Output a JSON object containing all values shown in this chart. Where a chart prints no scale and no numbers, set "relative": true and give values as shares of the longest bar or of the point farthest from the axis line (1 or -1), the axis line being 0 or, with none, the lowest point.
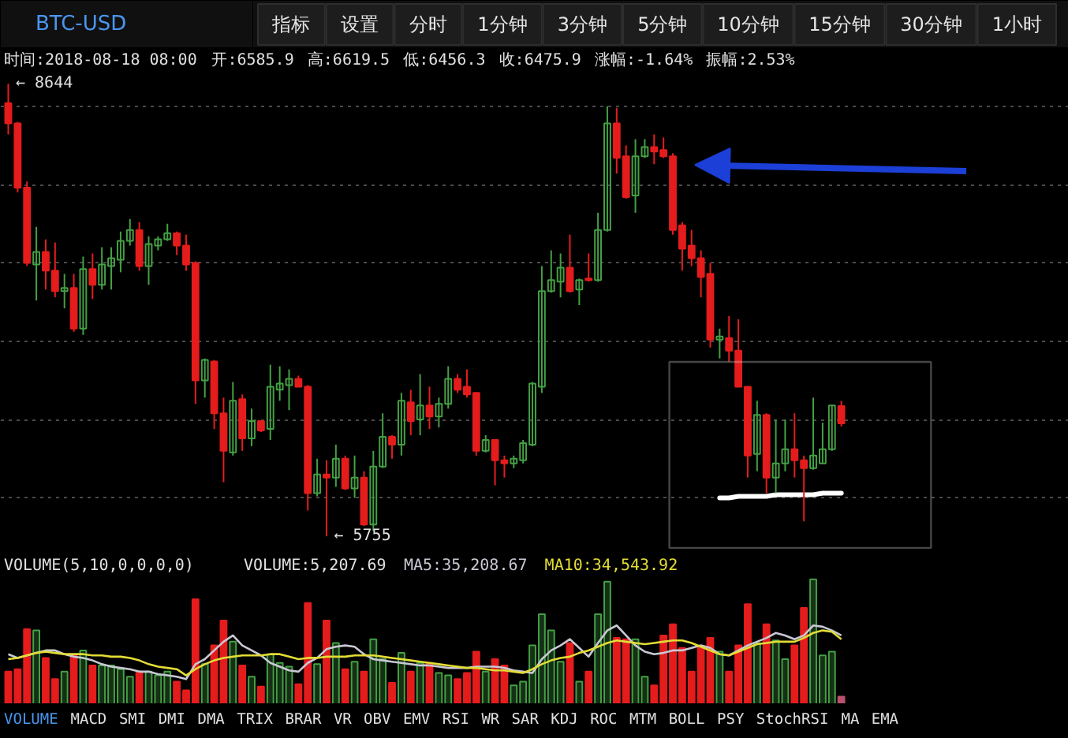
{
  "chart_data": [
    {
      "type": "other",
      "annotations": [
        "指标",
        "设置",
        "分时",
        "1分钟",
        "3分钟",
        "5分钟",
        "10分钟",
        "15分钟",
        "30分钟",
        "1小时"
      ]
    },
    {
      "type": "other",
      "annotations": [
        "时间:2018-08-18 08:00",
        "开:6585.9",
        "高:6619.5",
        "低:6456.3",
        "收:6475.9",
        "涨幅:-1.64%",
        "振幅:2.53%"
      ]
    },
    {
      "type": "candlestick",
      "title": "BTC-USD",
      "categories": [
        null,
        null,
        null,
        null,
        null,
        null,
        null,
        null,
        null,
        null,
        null,
        null,
        null,
        null,
        null,
        null,
        null,
        null,
        null,
        null,
        null,
        null,
        null,
        null,
        null,
        null,
        null,
        null,
        null,
        null,
        null,
        null,
        null,
        null,
        null,
        null,
        null,
        null,
        null,
        null,
        null,
        null,
        null,
        null,
        null,
        null,
        null,
        null,
        null,
        null,
        null,
        null,
        null,
        null,
        null,
        null,
        null,
        null,
        null,
        null,
        null,
        null,
        null,
        null,
        null,
        null,
        null,
        null,
        null,
        null,
        null,
        null,
        null,
        null,
        null,
        null,
        null,
        null,
        null,
        null,
        null,
        null,
        null,
        null,
        null,
        null,
        null,
        null,
        null,
        null
      ],
      "ohlc": [
        [
          8520,
          8644,
          8320,
          8390
        ],
        [
          8390,
          8400,
          7950,
          7980
        ],
        [
          7980,
          8020,
          7480,
          7500
        ],
        [
          7490,
          7730,
          7260,
          7570
        ],
        [
          7570,
          7650,
          7330,
          7450
        ],
        [
          7450,
          7630,
          7280,
          7320
        ],
        [
          7320,
          7430,
          7210,
          7340
        ],
        [
          7340,
          7430,
          7060,
          7080
        ],
        [
          7080,
          7540,
          7040,
          7460
        ],
        [
          7460,
          7560,
          7270,
          7360
        ],
        [
          7360,
          7600,
          7330,
          7490
        ],
        [
          7480,
          7600,
          7330,
          7530
        ],
        [
          7520,
          7700,
          7440,
          7640
        ],
        [
          7640,
          7780,
          7610,
          7710
        ],
        [
          7710,
          7760,
          7450,
          7480
        ],
        [
          7480,
          7670,
          7360,
          7620
        ],
        [
          7610,
          7670,
          7580,
          7650
        ],
        [
          7650,
          7750,
          7640,
          7690
        ],
        [
          7690,
          7700,
          7550,
          7610
        ],
        [
          7610,
          7680,
          7450,
          7490
        ],
        [
          7500,
          7510,
          6600,
          6750
        ],
        [
          6750,
          6890,
          6640,
          6880
        ],
        [
          6870,
          6880,
          6440,
          6540
        ],
        [
          6540,
          6640,
          6100,
          6300
        ],
        [
          6290,
          6740,
          6270,
          6620
        ],
        [
          6630,
          6660,
          6300,
          6380
        ],
        [
          6380,
          6570,
          6330,
          6490
        ],
        [
          6490,
          6490,
          6420,
          6430
        ],
        [
          6440,
          6850,
          6370,
          6710
        ],
        [
          6690,
          6840,
          6620,
          6730
        ],
        [
          6720,
          6820,
          6560,
          6760
        ],
        [
          6760,
          6780,
          6710,
          6710
        ],
        [
          6710,
          6720,
          5920,
          6030
        ],
        [
          6030,
          6250,
          6010,
          6150
        ],
        [
          6150,
          6240,
          5755,
          6130
        ],
        [
          6130,
          6340,
          6070,
          6250
        ],
        [
          6250,
          6270,
          6050,
          6060
        ],
        [
          6060,
          6270,
          6000,
          6130
        ],
        [
          6130,
          6170,
          5820,
          5830
        ],
        [
          5830,
          6300,
          5790,
          6200
        ],
        [
          6200,
          6540,
          6190,
          6390
        ],
        [
          6390,
          6400,
          6250,
          6340
        ],
        [
          6340,
          6670,
          6270,
          6620
        ],
        [
          6610,
          6690,
          6400,
          6490
        ],
        [
          6500,
          6790,
          6400,
          6590
        ],
        [
          6590,
          6710,
          6440,
          6520
        ],
        [
          6520,
          6640,
          6450,
          6600
        ],
        [
          6600,
          6840,
          6570,
          6760
        ],
        [
          6760,
          6790,
          6670,
          6690
        ],
        [
          6710,
          6820,
          6640,
          6660
        ],
        [
          6670,
          6670,
          6270,
          6300
        ],
        [
          6300,
          6400,
          6290,
          6370
        ],
        [
          6370,
          6370,
          6080,
          6240
        ],
        [
          6240,
          6270,
          6130,
          6220
        ],
        [
          6220,
          6270,
          6190,
          6250
        ],
        [
          6240,
          6370,
          6220,
          6350
        ],
        [
          6340,
          6740,
          6330,
          6730
        ],
        [
          6710,
          7480,
          6670,
          7320
        ],
        [
          7320,
          7580,
          7310,
          7390
        ],
        [
          7380,
          7560,
          7280,
          7470
        ],
        [
          7470,
          7680,
          7310,
          7320
        ],
        [
          7330,
          7400,
          7230,
          7390
        ],
        [
          7400,
          7560,
          7380,
          7390
        ],
        [
          7390,
          7820,
          7380,
          7710
        ],
        [
          7710,
          8500,
          7700,
          8390
        ],
        [
          8390,
          8490,
          8070,
          8170
        ],
        [
          8180,
          8250,
          7910,
          7920
        ],
        [
          7930,
          8290,
          7820,
          8180
        ],
        [
          8180,
          8290,
          8170,
          8240
        ],
        [
          8240,
          8320,
          8130,
          8210
        ],
        [
          8220,
          8300,
          8170,
          8180
        ],
        [
          8180,
          8200,
          7680,
          7710
        ],
        [
          7740,
          7760,
          7450,
          7590
        ],
        [
          7610,
          7710,
          7480,
          7530
        ],
        [
          7530,
          7580,
          7280,
          7410
        ],
        [
          7430,
          7500,
          6960,
          7010
        ],
        [
          7010,
          7080,
          6890,
          7030
        ],
        [
          7020,
          7160,
          6870,
          6940
        ],
        [
          6940,
          7140,
          6710,
          6710
        ],
        [
          6710,
          6710,
          6130,
          6270
        ],
        [
          6280,
          6620,
          6170,
          6530
        ],
        [
          6530,
          6540,
          6030,
          6130
        ],
        [
          6130,
          6500,
          6030,
          6220
        ],
        [
          6220,
          6500,
          6170,
          6310
        ],
        [
          6310,
          6540,
          6130,
          6240
        ],
        [
          6240,
          6270,
          5850,
          6190
        ],
        [
          6190,
          6640,
          6180,
          6270
        ],
        [
          6220,
          6480,
          6220,
          6310
        ],
        [
          6310,
          6590,
          6300,
          6590
        ],
        [
          6585.9,
          6619.5,
          6456.3,
          6475.9
        ]
      ],
      "colors": [
        "#e51c1c",
        "#e51c1c",
        "#e51c1c",
        "#44a044",
        "#e51c1c",
        "#e51c1c",
        "#44a044",
        "#e51c1c",
        "#44a044",
        "#e51c1c",
        "#44a044",
        "#44a044",
        "#44a044",
        "#44a044",
        "#e51c1c",
        "#44a044",
        "#44a044",
        "#44a044",
        "#e51c1c",
        "#e51c1c",
        "#e51c1c",
        "#44a044",
        "#e51c1c",
        "#e51c1c",
        "#44a044",
        "#e51c1c",
        "#44a044",
        "#e51c1c",
        "#44a044",
        "#44a044",
        "#44a044",
        "#e51c1c",
        "#e51c1c",
        "#44a044",
        "#e51c1c",
        "#44a044",
        "#e51c1c",
        "#44a044",
        "#e51c1c",
        "#44a044",
        "#44a044",
        "#e51c1c",
        "#44a044",
        "#e51c1c",
        "#44a044",
        "#e51c1c",
        "#44a044",
        "#44a044",
        "#e51c1c",
        "#e51c1c",
        "#e51c1c",
        "#44a044",
        "#e51c1c",
        "#e51c1c",
        "#44a044",
        "#44a044",
        "#44a044",
        "#44a044",
        "#44a044",
        "#44a044",
        "#e51c1c",
        "#44a044",
        "#e51c1c",
        "#44a044",
        "#44a044",
        "#e51c1c",
        "#e51c1c",
        "#44a044",
        "#44a044",
        "#e51c1c",
        "#e51c1c",
        "#e51c1c",
        "#e51c1c",
        "#e51c1c",
        "#e51c1c",
        "#e51c1c",
        "#44a044",
        "#e51c1c",
        "#e51c1c",
        "#e51c1c",
        "#44a044",
        "#e51c1c",
        "#44a044",
        "#44a044",
        "#e51c1c",
        "#e51c1c",
        "#44a044",
        "#44a044",
        "#44a044",
        "#e51c1c"
      ],
      "series": [
        {
          "type": "line",
          "color": "#ffffff",
          "values": [
            null,
            null,
            null,
            null,
            null,
            null,
            null,
            null,
            null,
            null,
            null,
            null,
            null,
            null,
            null,
            null,
            null,
            null,
            null,
            null,
            null,
            null,
            null,
            null,
            null,
            null,
            null,
            null,
            null,
            null,
            null,
            null,
            null,
            null,
            null,
            null,
            null,
            null,
            null,
            null,
            null,
            null,
            null,
            null,
            null,
            null,
            null,
            null,
            null,
            null,
            null,
            null,
            null,
            null,
            null,
            null,
            null,
            null,
            null,
            null,
            null,
            null,
            null,
            null,
            null,
            null,
            null,
            null,
            null,
            null,
            null,
            null,
            null,
            null,
            null,
            null,
            6000,
            6000,
            6010,
            6010,
            6010,
            6010,
            6020,
            6020,
            6020,
            6020,
            6020,
            6030,
            6030,
            6030
          ]
        }
      ],
      "ylim": [
        5650,
        8710
      ],
      "yticks": [
        {
          "value": 6000,
          "label": null
        },
        {
          "value": 6500,
          "label": null
        },
        {
          "value": 7000,
          "label": null
        },
        {
          "value": 7500,
          "label": null
        },
        {
          "value": 8000,
          "label": null
        },
        {
          "value": 8500,
          "label": null
        }
      ],
      "grid": "y",
      "tick_labels": false,
      "annotations": [
        "← 8644",
        "← 5755"
      ]
    },
    {
      "type": "bar",
      "title": "VOLUME(5,10,0,0,0,0)",
      "relative": true,
      "categories": [
        null,
        null,
        null,
        null,
        null,
        null,
        null,
        null,
        null,
        null,
        null,
        null,
        null,
        null,
        null,
        null,
        null,
        null,
        null,
        null,
        null,
        null,
        null,
        null,
        null,
        null,
        null,
        null,
        null,
        null,
        null,
        null,
        null,
        null,
        null,
        null,
        null,
        null,
        null,
        null,
        null,
        null,
        null,
        null,
        null,
        null,
        null,
        null,
        null,
        null,
        null,
        null,
        null,
        null,
        null,
        null,
        null,
        null,
        null,
        null,
        null,
        null,
        null,
        null,
        null,
        null,
        null,
        null,
        null,
        null,
        null,
        null,
        null,
        null,
        null,
        null,
        null,
        null,
        null,
        null,
        null,
        null,
        null,
        null,
        null,
        null,
        null,
        null,
        null,
        null
      ],
      "annotations": [
        "VOLUME:5,207.69"
      ],
      "series": [
        {
          "type": "bar",
          "colors": [
            "#e51c1c",
            "#e51c1c",
            "#e51c1c",
            "#44a044",
            "#e51c1c",
            "#e51c1c",
            "#44a044",
            "#e51c1c",
            "#44a044",
            "#e51c1c",
            "#44a044",
            "#44a044",
            "#44a044",
            "#44a044",
            "#e51c1c",
            "#44a044",
            "#44a044",
            "#44a044",
            "#e51c1c",
            "#e51c1c",
            "#e51c1c",
            "#44a044",
            "#e51c1c",
            "#e51c1c",
            "#44a044",
            "#e51c1c",
            "#44a044",
            "#e51c1c",
            "#44a044",
            "#44a044",
            "#44a044",
            "#e51c1c",
            "#e51c1c",
            "#44a044",
            "#e51c1c",
            "#44a044",
            "#e51c1c",
            "#44a044",
            "#e51c1c",
            "#44a044",
            "#44a044",
            "#e51c1c",
            "#44a044",
            "#e51c1c",
            "#44a044",
            "#e51c1c",
            "#44a044",
            "#44a044",
            "#e51c1c",
            "#e51c1c",
            "#e51c1c",
            "#44a044",
            "#e51c1c",
            "#e51c1c",
            "#44a044",
            "#44a044",
            "#44a044",
            "#44a044",
            "#44a044",
            "#44a044",
            "#e51c1c",
            "#44a044",
            "#e51c1c",
            "#44a044",
            "#44a044",
            "#e51c1c",
            "#e51c1c",
            "#44a044",
            "#44a044",
            "#e51c1c",
            "#e51c1c",
            "#e51c1c",
            "#e51c1c",
            "#e51c1c",
            "#e51c1c",
            "#e51c1c",
            "#44a044",
            "#e51c1c",
            "#e51c1c",
            "#e51c1c",
            "#44a044",
            "#e51c1c",
            "#44a044",
            "#44a044",
            "#e51c1c",
            "#e51c1c",
            "#44a044",
            "#44a044",
            "#44a044",
            "#b8506e"
          ],
          "values": [
            0.26,
            0.28,
            0.6,
            0.59,
            0.37,
            0.2,
            0.26,
            0.39,
            0.43,
            0.31,
            0.31,
            0.31,
            0.28,
            0.22,
            0.26,
            0.26,
            0.23,
            0.26,
            0.18,
            0.11,
            0.84,
            0.32,
            0.47,
            0.67,
            0.5,
            0.31,
            0.22,
            0.14,
            0.4,
            0.33,
            0.3,
            0.16,
            0.81,
            0.32,
            0.67,
            0.49,
            0.28,
            0.34,
            0.26,
            0.52,
            0.36,
            0.17,
            0.41,
            0.26,
            0.33,
            0.33,
            0.25,
            0.23,
            0.2,
            0.25,
            0.42,
            0.26,
            0.36,
            0.31,
            0.15,
            0.18,
            0.47,
            0.72,
            0.59,
            0.34,
            0.49,
            0.18,
            0.26,
            0.72,
            0.98,
            0.53,
            0.52,
            0.52,
            0.22,
            0.15,
            0.55,
            0.64,
            0.45,
            0.26,
            0.45,
            0.53,
            0.42,
            0.26,
            0.47,
            0.8,
            0.49,
            0.64,
            0.51,
            0.36,
            0.47,
            0.77,
            1.0,
            0.39,
            0.42,
            0.06
          ]
        },
        {
          "type": "line",
          "name": "MA5:35,208.67",
          "color": "#c8c8d4",
          "values": [
            0.4,
            0.37,
            0.39,
            0.41,
            0.43,
            0.43,
            0.4,
            0.38,
            0.37,
            0.35,
            0.32,
            0.3,
            0.29,
            0.28,
            0.26,
            0.26,
            0.24,
            0.23,
            0.22,
            0.2,
            0.32,
            0.36,
            0.43,
            0.5,
            0.55,
            0.47,
            0.43,
            0.39,
            0.33,
            0.3,
            0.27,
            0.26,
            0.33,
            0.37,
            0.44,
            0.46,
            0.47,
            0.46,
            0.4,
            0.36,
            0.35,
            0.34,
            0.33,
            0.32,
            0.31,
            0.31,
            0.3,
            0.29,
            0.29,
            0.29,
            0.3,
            0.3,
            0.3,
            0.29,
            0.27,
            0.26,
            0.25,
            0.36,
            0.43,
            0.47,
            0.52,
            0.45,
            0.38,
            0.49,
            0.59,
            0.63,
            0.55,
            0.47,
            0.42,
            0.4,
            0.41,
            0.43,
            0.43,
            0.45,
            0.47,
            0.45,
            0.4,
            0.39,
            0.43,
            0.47,
            0.5,
            0.53,
            0.57,
            0.55,
            0.52,
            0.55,
            0.63,
            0.62,
            0.59,
            0.55
          ]
        },
        {
          "type": "line",
          "name": "MA10:34,543.92",
          "color": "#e2dc36",
          "values": [
            0.36,
            0.37,
            0.39,
            0.41,
            0.42,
            0.41,
            0.4,
            0.4,
            0.4,
            0.39,
            0.39,
            0.38,
            0.38,
            0.37,
            0.35,
            0.32,
            0.3,
            0.29,
            0.28,
            0.23,
            0.28,
            0.32,
            0.35,
            0.37,
            0.38,
            0.39,
            0.39,
            0.39,
            0.4,
            0.4,
            0.38,
            0.36,
            0.37,
            0.37,
            0.38,
            0.38,
            0.38,
            0.39,
            0.39,
            0.39,
            0.38,
            0.37,
            0.36,
            0.35,
            0.34,
            0.33,
            0.32,
            0.31,
            0.3,
            0.29,
            0.29,
            0.28,
            0.27,
            0.27,
            0.26,
            0.25,
            0.28,
            0.32,
            0.35,
            0.37,
            0.38,
            0.41,
            0.43,
            0.46,
            0.49,
            0.51,
            0.5,
            0.49,
            0.48,
            0.49,
            0.5,
            0.51,
            0.51,
            0.49,
            0.46,
            0.43,
            0.4,
            0.39,
            0.42,
            0.45,
            0.48,
            0.49,
            0.5,
            0.5,
            0.5,
            0.53,
            0.57,
            0.59,
            0.58,
            0.52
          ]
        }
      ]
    },
    {
      "type": "other",
      "annotations": [
        "VOLUME",
        "MACD",
        "SMI",
        "DMI",
        "DMA",
        "TRIX",
        "BRAR",
        "VR",
        "OBV",
        "EMV",
        "RSI",
        "WR",
        "SAR",
        "KDJ",
        "ROC",
        "MTM",
        "BOLL",
        "PSY",
        "StochRSI",
        "MA",
        "EMA"
      ]
    }
  ]
}
